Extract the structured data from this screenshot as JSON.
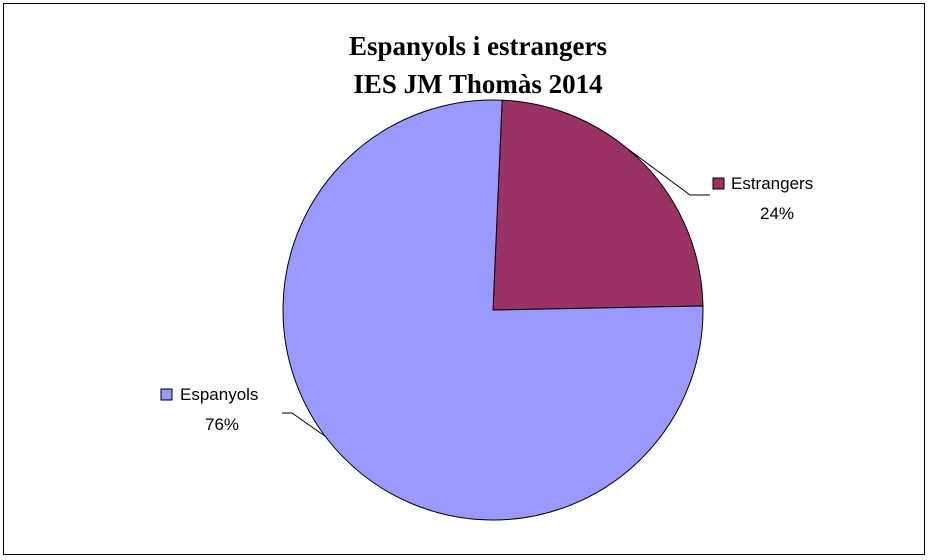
{
  "chart_data": {
    "type": "pie",
    "title": "Espanyols i estrangers",
    "subtitle": "IES JM Thomàs 2014",
    "start_angle_deg": 2.5,
    "slices": [
      {
        "name": "Estrangers",
        "value": 24,
        "label": "Estrangers",
        "percent_label": "24%",
        "color": "#993366"
      },
      {
        "name": "Espanyols",
        "value": 76,
        "label": "Espanyols",
        "percent_label": "76%",
        "color": "#9999FF"
      }
    ]
  }
}
